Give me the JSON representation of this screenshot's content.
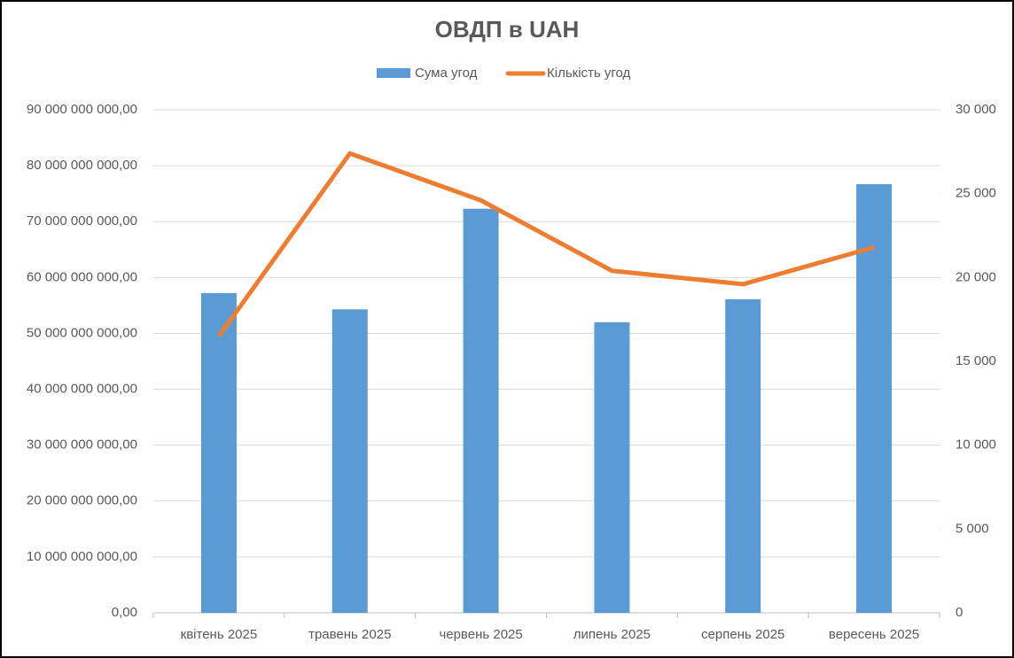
{
  "chart_data": {
    "type": "bar-line",
    "title": "ОВДП в UAH",
    "categories": [
      "квітень 2025",
      "травень 2025",
      "червень 2025",
      "липень 2025",
      "серпень 2025",
      "вересень 2025"
    ],
    "series": [
      {
        "name": "Сума угод",
        "type": "bar",
        "color": "#5b9bd5",
        "values": [
          57200000000,
          54300000000,
          72300000000,
          52000000000,
          56100000000,
          76700000000
        ]
      },
      {
        "name": "Кількість угод",
        "type": "line",
        "axis": "y2",
        "color": "#ed7d31",
        "values": [
          16500,
          27400,
          24600,
          20400,
          19600,
          21800
        ]
      }
    ],
    "ylim": [
      0,
      90000000000
    ],
    "yticks": [
      {
        "value": 0,
        "label": "0,00"
      },
      {
        "value": 10000000000,
        "label": "10 000 000 000,00"
      },
      {
        "value": 20000000000,
        "label": "20 000 000 000,00"
      },
      {
        "value": 30000000000,
        "label": "30 000 000 000,00"
      },
      {
        "value": 40000000000,
        "label": "40 000 000 000,00"
      },
      {
        "value": 50000000000,
        "label": "50 000 000 000,00"
      },
      {
        "value": 60000000000,
        "label": "60 000 000 000,00"
      },
      {
        "value": 70000000000,
        "label": "70 000 000 000,00"
      },
      {
        "value": 80000000000,
        "label": "80 000 000 000,00"
      },
      {
        "value": 90000000000,
        "label": "90 000 000 000,00"
      }
    ],
    "y2lim": [
      0,
      30000
    ],
    "y2ticks": [
      0,
      {
        "value": 5000,
        "label": "5 000"
      },
      {
        "value": 10000,
        "label": "10 000"
      },
      {
        "value": 15000,
        "label": "15 000"
      },
      {
        "value": 20000,
        "label": "20 000"
      },
      {
        "value": 25000,
        "label": "25 000"
      },
      {
        "value": 30000,
        "label": "30 000"
      }
    ],
    "grid": true,
    "legend": "top"
  }
}
